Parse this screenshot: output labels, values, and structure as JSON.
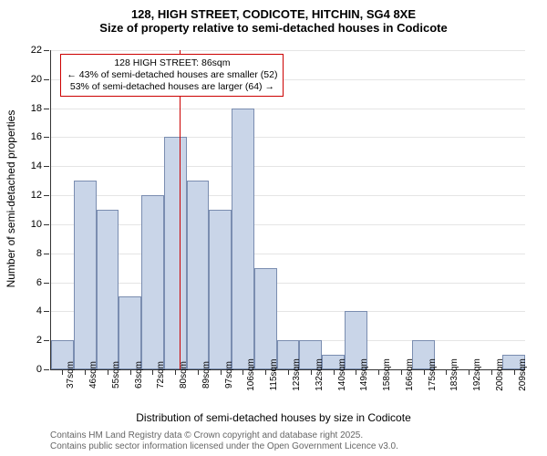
{
  "title": {
    "main": "128, HIGH STREET, CODICOTE, HITCHIN, SG4 8XE",
    "sub": "Size of property relative to semi-detached houses in Codicote"
  },
  "chart": {
    "type": "histogram",
    "ylim": [
      0,
      22
    ],
    "ytick_step": 2,
    "yticks": [
      0,
      2,
      4,
      6,
      8,
      10,
      12,
      14,
      16,
      18,
      20,
      22
    ],
    "y_axis_label": "Number of semi-detached properties",
    "x_axis_label": "Distribution of semi-detached houses by size in Codicote",
    "x_categories": [
      "37sqm",
      "46sqm",
      "55sqm",
      "63sqm",
      "72sqm",
      "80sqm",
      "89sqm",
      "97sqm",
      "106sqm",
      "115sqm",
      "123sqm",
      "132sqm",
      "140sqm",
      "149sqm",
      "158sqm",
      "166sqm",
      "175sqm",
      "183sqm",
      "192sqm",
      "200sqm",
      "209sqm"
    ],
    "bars": [
      2,
      13,
      11,
      5,
      12,
      16,
      13,
      11,
      18,
      7,
      2,
      2,
      1,
      4,
      0,
      0,
      2,
      0,
      0,
      0,
      1
    ],
    "bar_color": "#c9d5e8",
    "bar_border": "#7a8db0",
    "grid_color": "#e5e5e5",
    "vline_index": 5.71,
    "vline_color": "#cc0000"
  },
  "annotation": {
    "line1": "128 HIGH STREET: 86sqm",
    "line2": "← 43% of semi-detached houses are smaller (52)",
    "line3": "53% of semi-detached houses are larger (64) →"
  },
  "copyright": {
    "line1": "Contains HM Land Registry data © Crown copyright and database right 2025.",
    "line2": "Contains public sector information licensed under the Open Government Licence v3.0."
  }
}
